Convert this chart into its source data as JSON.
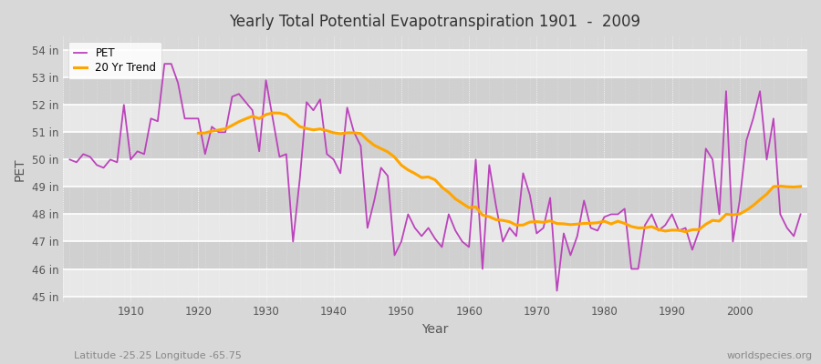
{
  "title": "Yearly Total Potential Evapotranspiration 1901  -  2009",
  "ylabel": "PET",
  "xlabel": "Year",
  "subtitle_left": "Latitude -25.25 Longitude -65.75",
  "subtitle_right": "worldspecies.org",
  "pet_color": "#bb44bb",
  "trend_color": "#ffa500",
  "bg_color": "#d8d8d8",
  "band_light": "#e8e8e8",
  "band_dark": "#d0d0d0",
  "years": [
    1901,
    1902,
    1903,
    1904,
    1905,
    1906,
    1907,
    1908,
    1909,
    1910,
    1911,
    1912,
    1913,
    1914,
    1915,
    1916,
    1917,
    1918,
    1919,
    1920,
    1921,
    1922,
    1923,
    1924,
    1925,
    1926,
    1927,
    1928,
    1929,
    1930,
    1931,
    1932,
    1933,
    1934,
    1935,
    1936,
    1937,
    1938,
    1939,
    1940,
    1941,
    1942,
    1943,
    1944,
    1945,
    1946,
    1947,
    1948,
    1949,
    1950,
    1951,
    1952,
    1953,
    1954,
    1955,
    1956,
    1957,
    1958,
    1959,
    1960,
    1961,
    1962,
    1963,
    1964,
    1965,
    1966,
    1967,
    1968,
    1969,
    1970,
    1971,
    1972,
    1973,
    1974,
    1975,
    1976,
    1977,
    1978,
    1979,
    1980,
    1981,
    1982,
    1983,
    1984,
    1985,
    1986,
    1987,
    1988,
    1989,
    1990,
    1991,
    1992,
    1993,
    1994,
    1995,
    1996,
    1997,
    1998,
    1999,
    2000,
    2001,
    2002,
    2003,
    2004,
    2005,
    2006,
    2007,
    2008,
    2009
  ],
  "pet_values": [
    50.0,
    49.9,
    50.2,
    50.1,
    49.8,
    49.7,
    50.0,
    49.9,
    52.0,
    50.0,
    50.3,
    50.2,
    51.5,
    51.4,
    53.5,
    53.5,
    52.8,
    51.5,
    51.5,
    51.5,
    50.2,
    51.2,
    51.0,
    51.0,
    52.3,
    52.4,
    52.1,
    51.8,
    50.3,
    52.9,
    51.5,
    50.1,
    50.2,
    47.0,
    49.3,
    52.1,
    51.8,
    52.2,
    50.2,
    50.0,
    49.5,
    51.9,
    51.0,
    50.5,
    47.5,
    48.5,
    49.7,
    49.4,
    46.5,
    47.0,
    48.0,
    47.5,
    47.2,
    47.5,
    47.1,
    46.8,
    48.0,
    47.4,
    47.0,
    46.8,
    50.0,
    46.0,
    49.8,
    48.3,
    47.0,
    47.5,
    47.2,
    49.5,
    48.7,
    47.3,
    47.5,
    48.6,
    45.2,
    47.3,
    46.5,
    47.2,
    48.5,
    47.5,
    47.4,
    47.9,
    48.0,
    48.0,
    48.2,
    46.0,
    46.0,
    47.6,
    48.0,
    47.4,
    47.6,
    48.0,
    47.4,
    47.5,
    46.7,
    47.4,
    50.4,
    50.0,
    48.0,
    52.5,
    47.0,
    48.5,
    50.7,
    51.5,
    52.5,
    50.0,
    51.5,
    48.0,
    47.5,
    47.2,
    48.0
  ],
  "ylim": [
    44.8,
    54.5
  ],
  "yticks": [
    45,
    46,
    47,
    48,
    49,
    50,
    51,
    52,
    53,
    54
  ],
  "trend_window": 20
}
